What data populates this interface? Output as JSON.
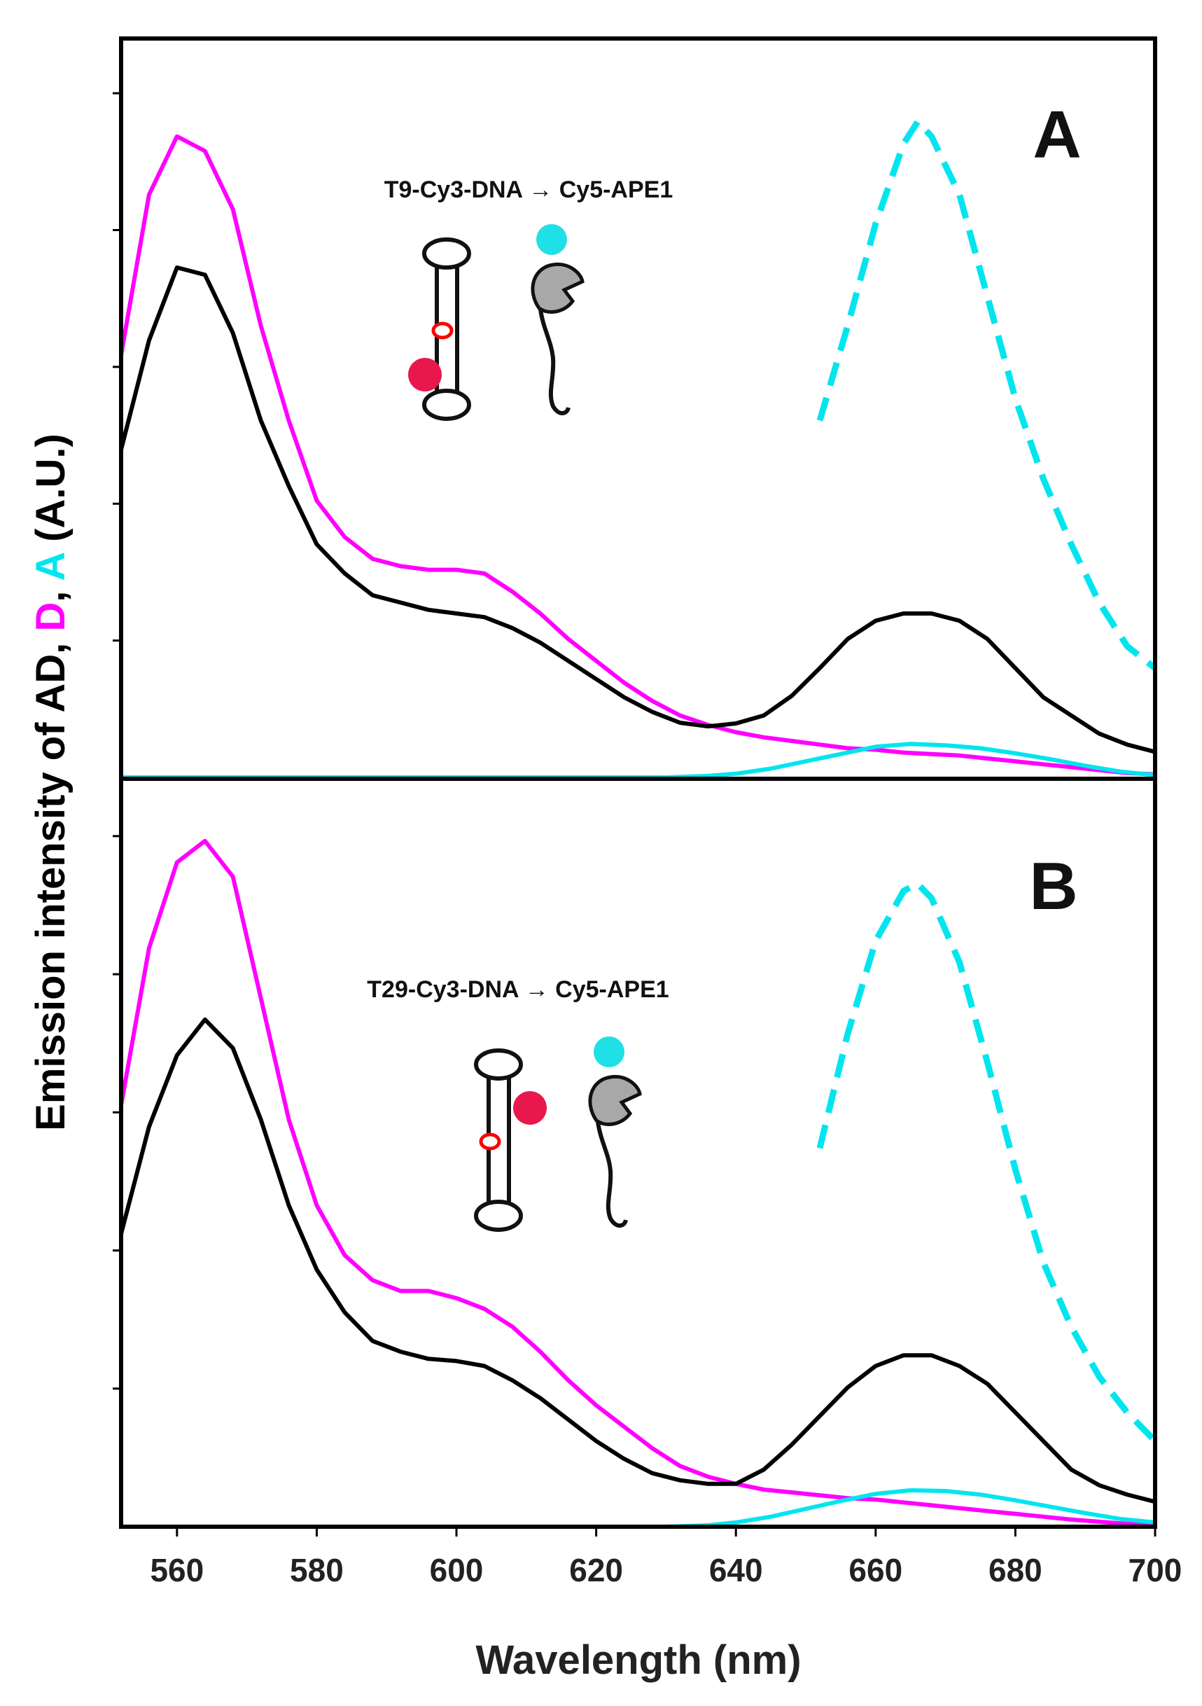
{
  "chart_data": {
    "type": "line",
    "xlabel": "Wavelength (nm)",
    "ylabel_parts": [
      {
        "text": "Emission intensity of AD, ",
        "color": "#000000"
      },
      {
        "text": "D",
        "color": "#FF00FF"
      },
      {
        "text": ", ",
        "color": "#000000"
      },
      {
        "text": "A",
        "color": "#00E5EE"
      },
      {
        "text": " (A.U.)",
        "color": "#000000"
      }
    ],
    "xlim": [
      552,
      700
    ],
    "ylim": [
      0,
      1
    ],
    "xticks": [
      "560",
      "580",
      "600",
      "620",
      "640",
      "660",
      "680",
      "700"
    ],
    "grid": false,
    "colors": {
      "AD": "#000000",
      "D": "#FF00FF",
      "A": "#00E5EE",
      "cy3_dot": "#E8184D",
      "cy5_dot": "#1FE0E6",
      "abasic_site": "#FF0000",
      "protein": "#A8A8A8"
    },
    "panels": [
      {
        "letter": "A",
        "construct_label": "T9-Cy3-DNA → Cy5-APE1",
        "cy3_label_position": "near abasic site, lower strand",
        "series": [
          {
            "name": "AD",
            "style": "solid",
            "x": [
              552,
              556,
              560,
              564,
              568,
              572,
              576,
              580,
              584,
              588,
              592,
              596,
              600,
              604,
              608,
              612,
              616,
              620,
              624,
              628,
              632,
              636,
              640,
              644,
              648,
              652,
              656,
              660,
              664,
              668,
              672,
              676,
              680,
              684,
              688,
              692,
              696,
              700
            ],
            "y": [
              0.45,
              0.6,
              0.7,
              0.69,
              0.61,
              0.49,
              0.4,
              0.32,
              0.28,
              0.25,
              0.24,
              0.23,
              0.225,
              0.22,
              0.205,
              0.185,
              0.16,
              0.135,
              0.11,
              0.09,
              0.075,
              0.07,
              0.074,
              0.085,
              0.112,
              0.15,
              0.19,
              0.215,
              0.225,
              0.225,
              0.215,
              0.19,
              0.15,
              0.11,
              0.085,
              0.06,
              0.045,
              0.035
            ]
          },
          {
            "name": "D",
            "style": "solid",
            "x": [
              552,
              556,
              560,
              564,
              568,
              572,
              576,
              580,
              584,
              588,
              592,
              596,
              600,
              604,
              608,
              612,
              616,
              620,
              624,
              628,
              632,
              636,
              640,
              644,
              648,
              652,
              656,
              660,
              664,
              668,
              672,
              676,
              680,
              684,
              688,
              692,
              696,
              700
            ],
            "y": [
              0.58,
              0.8,
              0.88,
              0.86,
              0.78,
              0.62,
              0.49,
              0.38,
              0.33,
              0.3,
              0.29,
              0.285,
              0.285,
              0.28,
              0.255,
              0.225,
              0.19,
              0.16,
              0.13,
              0.105,
              0.085,
              0.072,
              0.062,
              0.055,
              0.05,
              0.045,
              0.04,
              0.038,
              0.034,
              0.032,
              0.03,
              0.026,
              0.022,
              0.018,
              0.014,
              0.01,
              0.006,
              0.004
            ]
          },
          {
            "name": "A",
            "style": "solid",
            "x": [
              552,
              560,
              570,
              580,
              590,
              600,
              610,
              620,
              630,
              636,
              640,
              645,
              650,
              655,
              660,
              665,
              670,
              675,
              680,
              685,
              690,
              695,
              700
            ],
            "y": [
              0.0,
              0.0,
              0.0,
              0.0,
              0.0,
              0.0,
              0.0,
              0.0,
              0.0,
              0.002,
              0.005,
              0.012,
              0.022,
              0.032,
              0.042,
              0.046,
              0.044,
              0.04,
              0.033,
              0.025,
              0.016,
              0.008,
              0.003
            ]
          },
          {
            "name": "A (scaled)",
            "style": "dashed",
            "x": [
              652,
              656,
              660,
              664,
              666,
              668,
              672,
              676,
              680,
              684,
              688,
              692,
              696,
              700
            ],
            "y": [
              0.49,
              0.62,
              0.76,
              0.87,
              0.9,
              0.88,
              0.8,
              0.66,
              0.52,
              0.41,
              0.32,
              0.24,
              0.18,
              0.15
            ]
          }
        ]
      },
      {
        "letter": "B",
        "construct_label": "T29-Cy3-DNA → Cy5-APE1",
        "cy3_label_position": "upper strand, away from abasic site",
        "series": [
          {
            "name": "AD",
            "style": "solid",
            "x": [
              552,
              556,
              560,
              564,
              568,
              572,
              576,
              580,
              584,
              588,
              592,
              596,
              600,
              604,
              608,
              612,
              616,
              620,
              624,
              628,
              632,
              636,
              640,
              644,
              648,
              652,
              656,
              660,
              664,
              668,
              672,
              676,
              680,
              684,
              688,
              692,
              696,
              700
            ],
            "y": [
              0.41,
              0.56,
              0.66,
              0.71,
              0.67,
              0.57,
              0.45,
              0.36,
              0.3,
              0.26,
              0.245,
              0.235,
              0.232,
              0.225,
              0.205,
              0.18,
              0.15,
              0.12,
              0.095,
              0.075,
              0.065,
              0.06,
              0.06,
              0.08,
              0.115,
              0.155,
              0.195,
              0.225,
              0.24,
              0.24,
              0.225,
              0.2,
              0.16,
              0.12,
              0.08,
              0.058,
              0.045,
              0.035
            ]
          },
          {
            "name": "D",
            "style": "solid",
            "x": [
              552,
              556,
              560,
              564,
              568,
              572,
              576,
              580,
              584,
              588,
              592,
              596,
              600,
              604,
              608,
              612,
              616,
              620,
              624,
              628,
              632,
              636,
              640,
              644,
              648,
              652,
              656,
              660,
              664,
              668,
              672,
              676,
              680,
              684,
              688,
              692,
              696,
              700
            ],
            "y": [
              0.59,
              0.81,
              0.93,
              0.96,
              0.91,
              0.74,
              0.57,
              0.45,
              0.38,
              0.345,
              0.33,
              0.33,
              0.32,
              0.305,
              0.28,
              0.245,
              0.205,
              0.17,
              0.14,
              0.11,
              0.085,
              0.07,
              0.06,
              0.052,
              0.048,
              0.044,
              0.04,
              0.038,
              0.034,
              0.03,
              0.026,
              0.022,
              0.018,
              0.014,
              0.01,
              0.007,
              0.004,
              0.002
            ]
          },
          {
            "name": "A",
            "style": "solid",
            "x": [
              552,
              560,
              570,
              580,
              590,
              600,
              610,
              620,
              630,
              636,
              640,
              645,
              650,
              655,
              660,
              665,
              670,
              675,
              680,
              685,
              690,
              695,
              700
            ],
            "y": [
              0.0,
              0.0,
              0.0,
              0.0,
              0.0,
              0.0,
              0.0,
              0.0,
              0.0,
              0.002,
              0.006,
              0.014,
              0.025,
              0.036,
              0.046,
              0.051,
              0.05,
              0.045,
              0.037,
              0.028,
              0.019,
              0.011,
              0.006
            ]
          },
          {
            "name": "A (scaled)",
            "style": "dashed",
            "x": [
              652,
              656,
              660,
              664,
              666,
              668,
              672,
              676,
              680,
              684,
              688,
              692,
              696,
              700
            ],
            "y": [
              0.53,
              0.69,
              0.82,
              0.89,
              0.9,
              0.88,
              0.79,
              0.65,
              0.5,
              0.37,
              0.28,
              0.21,
              0.16,
              0.12
            ]
          }
        ]
      }
    ]
  }
}
